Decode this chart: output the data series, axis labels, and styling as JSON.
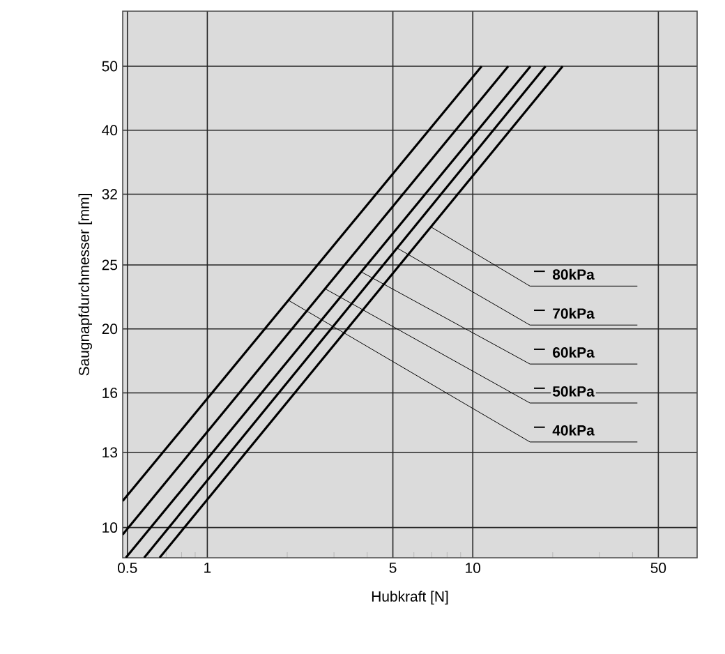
{
  "chart_data": {
    "type": "line",
    "xlabel": "Hubkraft [N]",
    "ylabel": "Saugnapfdurchmesser [mm]",
    "log": "xy",
    "grid": true,
    "marker": "none",
    "line_style": "solid",
    "xlim": [
      0.48,
      70
    ],
    "ylim": [
      9,
      60.6
    ],
    "xticks": [
      0.5,
      {
        "value": 0.6,
        "label": null
      },
      {
        "value": 0.7,
        "label": null
      },
      {
        "value": 0.8,
        "label": null
      },
      {
        "value": 0.9,
        "label": null
      },
      1,
      {
        "value": 2,
        "label": null
      },
      {
        "value": 3,
        "label": null
      },
      {
        "value": 4,
        "label": null
      },
      5,
      {
        "value": 6,
        "label": null
      },
      {
        "value": 7,
        "label": null
      },
      {
        "value": 8,
        "label": null
      },
      {
        "value": 9,
        "label": null
      },
      10,
      {
        "value": 20,
        "label": null
      },
      {
        "value": 30,
        "label": null
      },
      {
        "value": 40,
        "label": null
      },
      50
    ],
    "yticks": [
      10,
      13,
      16,
      20,
      25,
      32,
      40,
      50
    ],
    "annotations": [
      {
        "text": "80kPa",
        "x": 7.0,
        "y": 28.5
      },
      {
        "text": "70kPa",
        "x": 5.2,
        "y": 26.5
      },
      {
        "text": "60kPa",
        "x": 3.8,
        "y": 24.4
      },
      {
        "text": "50kPa",
        "x": 2.78,
        "y": 23.0
      },
      {
        "text": "40kPa",
        "x": 2.02,
        "y": 22.1
      }
    ],
    "series": [
      {
        "color": "#000000",
        "x": [
          0.48,
          10.8
        ],
        "values": [
          10.97,
          50
        ]
      },
      {
        "color": "#000000",
        "x": [
          0.48,
          13.6
        ],
        "values": [
          9.76,
          50
        ]
      },
      {
        "color": "#000000",
        "x": [
          0.493,
          16.5
        ],
        "values": [
          9,
          50
        ]
      },
      {
        "color": "#000000",
        "x": [
          0.578,
          18.8
        ],
        "values": [
          9,
          50
        ]
      },
      {
        "color": "#000000",
        "x": [
          0.661,
          21.8
        ],
        "values": [
          9,
          50
        ]
      }
    ]
  }
}
